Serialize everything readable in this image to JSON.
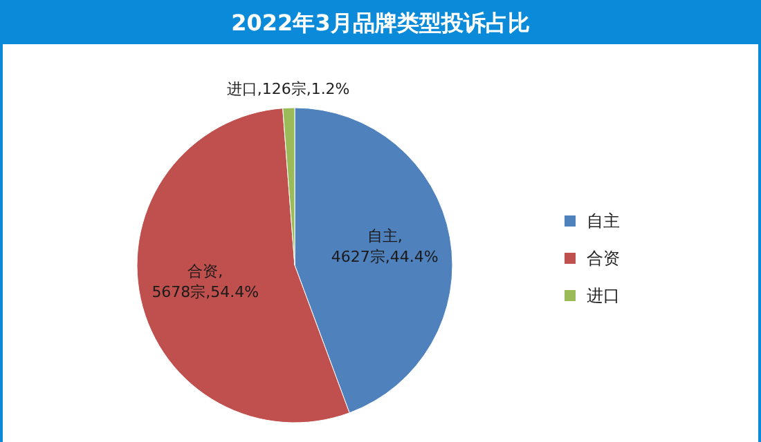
{
  "chart_data": {
    "type": "pie",
    "title": "2022年3月品牌类型投诉占比",
    "categories": [
      "自主",
      "合资",
      "进口"
    ],
    "values": [
      4627,
      5678,
      126
    ],
    "colors": [
      "#4f81bd",
      "#c0504d",
      "#9bbb59"
    ],
    "value_labels": [
      "自主,4627宗,44.4%",
      "合资,5678宗,54.4%",
      "进口,126宗,1.2%"
    ],
    "legend": "right"
  }
}
